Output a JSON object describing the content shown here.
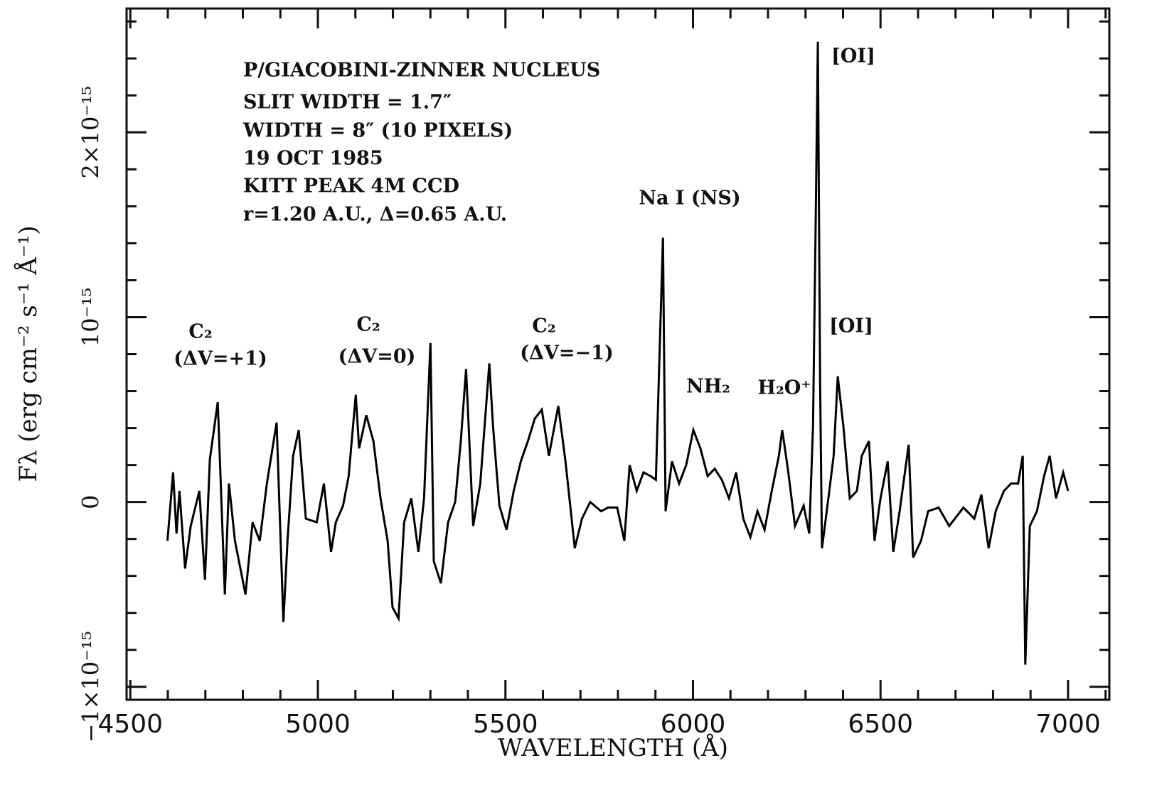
{
  "chart_data": {
    "type": "line",
    "xlabel": "WAVELENGTH (Å)",
    "ylabel": "Fλ (erg cm⁻² s⁻¹ Å⁻¹)",
    "notes": [
      "P/GIACOBINI-ZINNER NUCLEUS",
      "SLIT WIDTH = 1.7″",
      "WIDTH = 8″ (10 PIXELS)",
      "19 OCT 1985",
      "KITT PEAK 4M  CCD",
      "r=1.20 A.U., Δ=0.65 A.U."
    ],
    "line_labels": [
      "C₂",
      "(ΔV=+1)",
      "C₂",
      "(ΔV=0)",
      "C₂",
      "(ΔV=−1)",
      "Na I (NS)",
      "[OI]",
      "[OI]",
      "NH₂",
      "H₂O⁺"
    ],
    "xlim": [
      4490,
      7110
    ],
    "ylim": [
      -1.07e-15,
      2.67e-15
    ],
    "xticks": [
      4500,
      5000,
      5500,
      6000,
      6500,
      7000
    ],
    "xminorticks": [
      4600,
      4700,
      4800,
      4900,
      5100,
      5200,
      5300,
      5400,
      5600,
      5700,
      5800,
      5900,
      6100,
      6200,
      6300,
      6400,
      6600,
      6700,
      6800,
      6900,
      7100
    ],
    "yticks": [
      {
        "value": -1e-15,
        "label": "−1×10⁻¹⁵"
      },
      0,
      {
        "value": 1e-15,
        "label": "10⁻¹⁵"
      },
      {
        "value": 2e-15,
        "label": "2×10⁻¹⁵"
      }
    ],
    "yminorticks": [
      -8e-16,
      -6e-16,
      -4e-16,
      -2e-16,
      2e-16,
      4e-16,
      6e-16,
      8e-16,
      1.2e-15,
      1.4e-15,
      1.6e-15,
      1.8e-15,
      2.2e-15,
      2.4e-15,
      2.6e-15
    ],
    "x": [
      4599,
      4614,
      4623,
      4631,
      4646,
      4661,
      4684,
      4699,
      4712,
      4733,
      4752,
      4763,
      4779,
      4807,
      4826,
      4845,
      4864,
      4890,
      4908,
      4919,
      4934,
      4949,
      4968,
      4997,
      5016,
      5035,
      5048,
      5067,
      5082,
      5101,
      5110,
      5129,
      5148,
      5167,
      5186,
      5199,
      5215,
      5230,
      5249,
      5268,
      5283,
      5300,
      5309,
      5328,
      5347,
      5366,
      5381,
      5395,
      5414,
      5433,
      5457,
      5467,
      5484,
      5503,
      5522,
      5541,
      5560,
      5578,
      5597,
      5616,
      5641,
      5660,
      5685,
      5704,
      5726,
      5755,
      5774,
      5798,
      5817,
      5831,
      5850,
      5868,
      5887,
      5901,
      5912,
      5920,
      5927,
      5944,
      5963,
      5982,
      6001,
      6020,
      6039,
      6058,
      6077,
      6096,
      6115,
      6134,
      6153,
      6172,
      6191,
      6210,
      6229,
      6238,
      6253,
      6272,
      6295,
      6310,
      6320,
      6327,
      6333,
      6339,
      6344,
      6361,
      6375,
      6386,
      6401,
      6418,
      6437,
      6450,
      6469,
      6484,
      6500,
      6519,
      6534,
      6551,
      6575,
      6587,
      6608,
      6627,
      6655,
      6683,
      6721,
      6750,
      6769,
      6788,
      6807,
      6829,
      6848,
      6867,
      6879,
      6886,
      6898,
      6917,
      6936,
      6951,
      6968,
      6987,
      7000
    ],
    "series": [
      {
        "name": "P/Giacobini-Zinner nucleus",
        "color": "#000000",
        "values": [
          -2.1e-16,
          1.6e-16,
          -1.7e-16,
          6e-17,
          -3.6e-16,
          -1.3e-16,
          6e-17,
          -4.2e-16,
          2.3e-16,
          5.4e-16,
          -5e-16,
          1e-16,
          -2.1e-16,
          -5e-16,
          -1.1e-16,
          -2.1e-16,
          1e-16,
          4.3e-16,
          -6.5e-16,
          -2.1e-16,
          2.5e-16,
          3.9e-16,
          -9e-17,
          -1.1e-16,
          1e-16,
          -2.7e-16,
          -1.1e-16,
          -2e-17,
          1.4e-16,
          5.8e-16,
          2.9e-16,
          4.7e-16,
          3.3e-16,
          2e-17,
          -2.1e-16,
          -5.7e-16,
          -6.3e-16,
          -1.1e-16,
          2e-17,
          -2.7e-16,
          2e-17,
          8.6e-16,
          -3.2e-16,
          -4.4e-16,
          -1.1e-16,
          0.0,
          3.3e-16,
          7.2e-16,
          -1.3e-16,
          1e-16,
          7.5e-16,
          4.1e-16,
          -2e-17,
          -1.5e-16,
          6e-17,
          2.2e-16,
          3.3e-16,
          4.5e-16,
          5e-16,
          2.5e-16,
          5.2e-16,
          2.2e-16,
          -2.5e-16,
          -9e-17,
          0.0,
          -5e-17,
          -3e-17,
          -3e-17,
          -2.1e-16,
          2e-16,
          6e-17,
          1.6e-16,
          1.4e-16,
          1.2e-16,
          8.8e-16,
          1.43e-15,
          -5e-17,
          2.2e-16,
          1e-16,
          2e-16,
          3.9e-16,
          2.9e-16,
          1.4e-16,
          1.8e-16,
          1.2e-16,
          2e-17,
          1.6e-16,
          -9e-17,
          -1.9e-16,
          -5e-17,
          -1.5e-16,
          6e-17,
          2.5e-16,
          3.9e-16,
          1.8e-16,
          -1.3e-16,
          -2e-17,
          -1.7e-16,
          4.1e-16,
          1.5e-15,
          2.49e-15,
          6.4e-16,
          -2.5e-16,
          2e-17,
          2.5e-16,
          6.8e-16,
          4.1e-16,
          2e-17,
          6e-17,
          2.5e-16,
          3.3e-16,
          -2.1e-16,
          2e-17,
          2.2e-16,
          -2.7e-16,
          -5e-17,
          3.1e-16,
          -3e-16,
          -2.1e-16,
          -5e-17,
          -3e-17,
          -1.3e-16,
          -3e-17,
          -9e-17,
          4e-17,
          -2.5e-16,
          -5e-17,
          6e-17,
          1e-16,
          1e-16,
          2.5e-16,
          -8.8e-16,
          -1.3e-16,
          -5e-17,
          1.4e-16,
          2.5e-16,
          2e-17,
          1.6e-16,
          6e-17
        ]
      }
    ]
  }
}
